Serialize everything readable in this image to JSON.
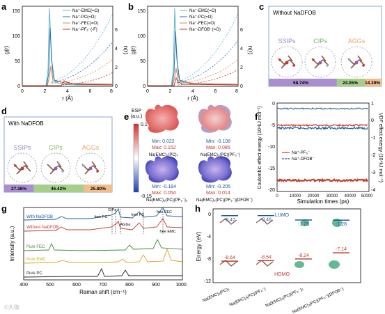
{
  "figure": {
    "panels": {
      "a": {
        "letter": "a",
        "ylabel_left": "g(r)",
        "ylabel_right": "n(r)",
        "xlabel": "r (Å)",
        "x_ticks": [
          "0",
          "2",
          "4",
          "6",
          "8"
        ],
        "y_ticks_left": [
          "0",
          "50",
          "100",
          "150"
        ],
        "y_ticks_right": [
          "0",
          "2",
          "4",
          "6"
        ],
        "legend": [
          "Na⁺-EMC(=O)",
          "Na⁺-PC(=O)",
          "Na⁺-FEC(=O)",
          "Na⁺-PF₆⁻(-F)"
        ],
        "colors": [
          "#5bb8c9",
          "#2f6fb3",
          "#d6884a",
          "#c0392b"
        ]
      },
      "b": {
        "letter": "b",
        "ylabel_left": "g(r)",
        "ylabel_right": "n(r)",
        "xlabel": "r (Å)",
        "x_ticks": [
          "0",
          "2",
          "4",
          "6",
          "8"
        ],
        "y_ticks_left": [
          "0",
          "50",
          "100",
          "150"
        ],
        "y_ticks_right": [
          "0",
          "2",
          "4",
          "6"
        ],
        "legend": [
          "Na⁺-EMC(=O)",
          "Na⁺-PC(=O)",
          "Na⁺-FEC(=O)",
          "Na⁺-DFOB⁻(=O)"
        ],
        "colors": [
          "#5bb8c9",
          "#2f6fb3",
          "#d6884a",
          "#c0392b"
        ]
      },
      "c": {
        "letter": "c",
        "title": "Without NaDFOB",
        "labels": [
          "SSIPs",
          "CIPs",
          "AGGs"
        ],
        "percents": [
          "58.74%",
          "24.05%",
          "14.39%"
        ],
        "percent_values": [
          58.74,
          24.05,
          14.39
        ],
        "bar_colors": [
          "#a98fcf",
          "#a6d08a",
          "#f1bd8a"
        ]
      },
      "d": {
        "letter": "d",
        "title": "With NaDFOB",
        "labels": [
          "SSIPs",
          "CIPs",
          "AGGs"
        ],
        "percents": [
          "27.36%",
          "46.42%",
          "25.80%"
        ],
        "percent_values": [
          27.36,
          46.42,
          25.8
        ],
        "bar_colors": [
          "#a98fcf",
          "#a6d08a",
          "#f1bd8a"
        ]
      },
      "e": {
        "letter": "e",
        "colorbar_title": "ESP",
        "colorbar_unit": "(a.u.)",
        "colorbar_max": "0.1",
        "colorbar_min": "-0.15",
        "cells": [
          {
            "min": "Min: 0.022",
            "max": "Max: 0.152",
            "label": "Na(EMC)₂(PC)₂",
            "tone": "red"
          },
          {
            "min": "Min: -0.108",
            "max": "Max: 0.085",
            "label": "Na(EMC)₂(PC)(PF₆⁻)",
            "tone": "mixed"
          },
          {
            "min": "Min: -0.184",
            "max": "Max: 0.054",
            "label": "Na(EMC)₂(PC)(PF₆⁻)₂",
            "tone": "blue"
          },
          {
            "min": "Min: -0.205",
            "max": "Max: 0.014",
            "label": "Na(EMC)₂(PC)(PF₆⁻)(DFOB⁻)",
            "tone": "blue"
          }
        ]
      },
      "f": {
        "letter": "f",
        "xlabel": "Simulation times (ps)",
        "ylabel_left": "Coulombic effect energy (10⁴kJ mol⁻¹)",
        "ylabel_right": "VDF effect energy (10⁴kJ mol⁻¹)",
        "x_ticks": [
          "0",
          "10000",
          "20000",
          "30000",
          "40000",
          "50000"
        ],
        "y_ticks_left": [
          "0",
          "-5",
          "-10",
          "-15",
          "-20"
        ],
        "y_ticks_right": [
          "1",
          "0",
          "-1",
          "-2",
          "-3",
          "-4"
        ],
        "legend": [
          "Na⁺-PF₆⁻",
          "Na⁺-DFOB⁻"
        ],
        "colors": [
          "#c0392b",
          "#1f5a99"
        ]
      },
      "g": {
        "letter": "g",
        "xlabel": "Raman shift (cm⁻¹)",
        "ylabel": "Intensity (a.u.)",
        "x_ticks": [
          "400",
          "500",
          "600",
          "700",
          "800",
          "900",
          "1000"
        ],
        "traces": [
          {
            "label": "With NaDFOB",
            "color": "#1f5a99"
          },
          {
            "label": "Without NaDFOB",
            "color": "#c0392b"
          },
          {
            "label": "Pure FEC",
            "color": "#3a8a3a"
          },
          {
            "label": "Pure EMC",
            "color": "#d9a21b"
          },
          {
            "label": "Pure PC",
            "color": "#222222"
          }
        ],
        "annotations": [
          "CIPs",
          "free PC",
          "AGGs",
          "free PC",
          "free FEC",
          "free EMC"
        ]
      },
      "h": {
        "letter": "h",
        "ylabel": "Energy (eV)",
        "y_ticks": [
          "0",
          "-4",
          "-8",
          "-12"
        ],
        "lumo_label": "LUMO",
        "homo_label": "HOMO",
        "lumo_values": [
          "-0.47",
          "-0.46",
          "-1.25",
          "-1.28"
        ],
        "homo_values": [
          "-8.64",
          "-8.54",
          "-8.24",
          "-7.14"
        ],
        "lumo_numbers": [
          -0.47,
          -0.46,
          -1.25,
          -1.28
        ],
        "homo_numbers": [
          -8.64,
          -8.54,
          -8.24,
          -7.14
        ],
        "categories": [
          "Na(EMC)₂(PC)₂",
          "Na(EMC)₂(PC)(PF₆⁻)",
          "Na(EMC)₂(PC)(PF₆⁻)₂",
          "Na(EMC)₂(PC)(PF₆⁻)(DFOB⁻)"
        ]
      }
    },
    "watermark": "©大咖"
  }
}
